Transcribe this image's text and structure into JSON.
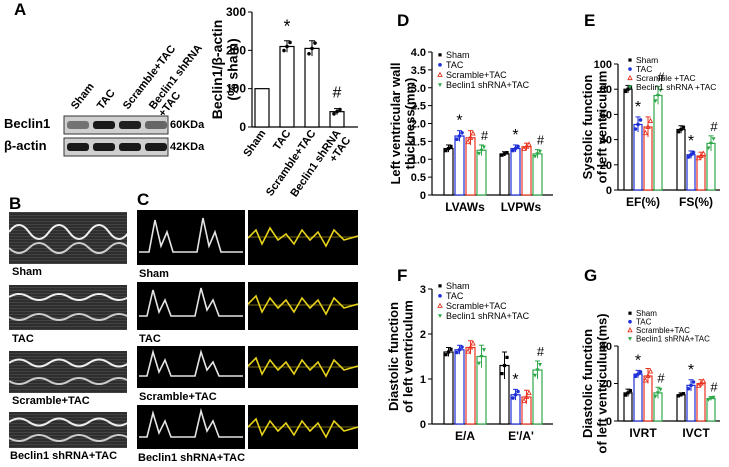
{
  "panel_labels": {
    "A": "A",
    "B": "B",
    "C": "C",
    "D": "D",
    "E": "E",
    "F": "F",
    "G": "G"
  },
  "western_blot": {
    "lanes": [
      "Sham",
      "TAC",
      "Scramble+TAC",
      "Beclin1 shRNA\n+TAC"
    ],
    "rows": [
      {
        "protein": "Beclin1",
        "size": "60KDa",
        "intensity": [
          0.55,
          0.9,
          0.88,
          0.6
        ]
      },
      {
        "protein": "β-actin",
        "size": "42KDa",
        "intensity": [
          0.9,
          0.9,
          0.9,
          0.9
        ]
      }
    ]
  },
  "panel_b": {
    "captions": [
      "Sham",
      "TAC",
      "Scramble+TAC",
      "Beclin1 shRNA+TAC"
    ]
  },
  "panel_c": {
    "captions": [
      "Sham",
      "TAC",
      "Scramble+TAC",
      "Beclin1 shRNA+TAC"
    ]
  },
  "colors": {
    "sham": "#000000",
    "tac": "#1f2fd6",
    "scramble": "#e8321e",
    "shrna": "#2ea84a"
  },
  "chart_data": [
    {
      "id": "A",
      "type": "bar",
      "ylabel": "Beclin1/β-actin\n(% sham)",
      "ylim": [
        0,
        300
      ],
      "yticks": [
        0,
        100,
        200,
        300
      ],
      "categories": [
        "Sham",
        "TAC",
        "Scramble+TAC",
        "Beclin1 shRNA\n+TAC"
      ],
      "values": [
        100,
        210,
        205,
        40
      ],
      "errors": [
        0,
        15,
        20,
        8
      ],
      "annotations": [
        "",
        "*",
        "",
        "#"
      ],
      "legend": []
    },
    {
      "id": "D",
      "type": "bar",
      "ylabel": "Left ventricular wall\nthickness(mm)",
      "ylim": [
        0,
        4
      ],
      "yticks": [
        "0",
        "0.5",
        "1.0",
        "1.5",
        "2.0",
        "2.5",
        "3.0",
        "3.5",
        "4.0"
      ],
      "categories": [
        "LVAWs",
        "LVPWs"
      ],
      "series_colors": [
        "#000000",
        "#1f2fd6",
        "#e8321e",
        "#2ea84a"
      ],
      "series": [
        {
          "name": "Sham",
          "values": [
            1.3,
            1.15
          ],
          "errors": [
            0.1,
            0.06
          ]
        },
        {
          "name": "TAC",
          "values": [
            1.65,
            1.3
          ],
          "errors": [
            0.15,
            0.1
          ]
        },
        {
          "name": "Scramble+TAC",
          "values": [
            1.6,
            1.35
          ],
          "errors": [
            0.2,
            0.1
          ]
        },
        {
          "name": "Beclin1 shRNA+TAC",
          "values": [
            1.25,
            1.15
          ],
          "errors": [
            0.15,
            0.12
          ]
        }
      ],
      "annotations": [
        [
          "",
          "*",
          "",
          "#"
        ],
        [
          "",
          "*",
          "",
          "#"
        ]
      ],
      "legend": [
        "Sham",
        "TAC",
        "Scramble+TAC",
        "Beclin1 shRNA+TAC"
      ]
    },
    {
      "id": "E",
      "type": "bar",
      "ylabel": "Systolic function\nof left ventriculum",
      "ylim": [
        0,
        100
      ],
      "yticks": [
        "0",
        "20",
        "40",
        "60",
        "80",
        "100"
      ],
      "categories": [
        "EF(%)",
        "FS(%)"
      ],
      "series_colors": [
        "#000000",
        "#1f2fd6",
        "#e8321e",
        "#2ea84a"
      ],
      "series": [
        {
          "name": "Sham",
          "values": [
            80,
            48
          ],
          "errors": [
            3,
            3
          ]
        },
        {
          "name": "TAC",
          "values": [
            52,
            28
          ],
          "errors": [
            6,
            3
          ]
        },
        {
          "name": "Scramble +TAC",
          "values": [
            50,
            27
          ],
          "errors": [
            8,
            3
          ]
        },
        {
          "name": "Beclin1 shRNA +TAC",
          "values": [
            75,
            37
          ],
          "errors": [
            7,
            6
          ]
        }
      ],
      "annotations": [
        [
          "",
          "*",
          "",
          "#"
        ],
        [
          "",
          "*",
          "",
          "#"
        ]
      ],
      "legend": [
        "Sham",
        "TAC",
        "Scramble +TAC",
        "Beclin1 shRNA +TAC"
      ]
    },
    {
      "id": "F",
      "type": "bar",
      "ylabel": "Diastolic function\nof left ventriculum",
      "ylim": [
        0,
        3
      ],
      "yticks": [
        "0",
        "1",
        "2",
        "3"
      ],
      "categories": [
        "E/A",
        "E'/A'"
      ],
      "series_colors": [
        "#000000",
        "#1f2fd6",
        "#e8321e",
        "#2ea84a"
      ],
      "series": [
        {
          "name": "Sham",
          "values": [
            1.6,
            1.3
          ],
          "errors": [
            0.1,
            0.3
          ]
        },
        {
          "name": "TAC",
          "values": [
            1.65,
            0.65
          ],
          "errors": [
            0.1,
            0.12
          ]
        },
        {
          "name": "Scramble+TAC",
          "values": [
            1.7,
            0.6
          ],
          "errors": [
            0.15,
            0.15
          ]
        },
        {
          "name": "Beclin1 shRNA+TAC",
          "values": [
            1.5,
            1.2
          ],
          "errors": [
            0.25,
            0.2
          ]
        }
      ],
      "annotations": [
        [
          "",
          "",
          "",
          ""
        ],
        [
          "",
          "*",
          "",
          "#"
        ]
      ],
      "legend": [
        "Sham",
        "TAC",
        "Scramble+TAC",
        "Beclin1 shRNA+TAC"
      ]
    },
    {
      "id": "G",
      "type": "bar",
      "ylabel": "Diastolic function\nof left ventriculum(ms)",
      "ylim": [
        0,
        40
      ],
      "yticks": [
        "0",
        "20",
        "40"
      ],
      "categories": [
        "IVRT",
        "IVCT"
      ],
      "series_colors": [
        "#000000",
        "#1f2fd6",
        "#e8321e",
        "#2ea84a"
      ],
      "series": [
        {
          "name": "Sham",
          "values": [
            15,
            14
          ],
          "errors": [
            2,
            1
          ]
        },
        {
          "name": "TAC",
          "values": [
            25,
            19
          ],
          "errors": [
            2,
            3
          ]
        },
        {
          "name": "Scramble+TAC",
          "values": [
            24,
            20
          ],
          "errors": [
            4,
            2
          ]
        },
        {
          "name": "Beclin1 shRNA+TAC",
          "values": [
            15,
            12
          ],
          "errors": [
            3,
            1
          ]
        }
      ],
      "annotations": [
        [
          "",
          "*",
          "",
          "#"
        ],
        [
          "",
          "*",
          "",
          "#"
        ]
      ],
      "legend": [
        "Sham",
        "TAC",
        "Scramble+TAC",
        "Beclin1 shRNA+TAC"
      ]
    }
  ]
}
